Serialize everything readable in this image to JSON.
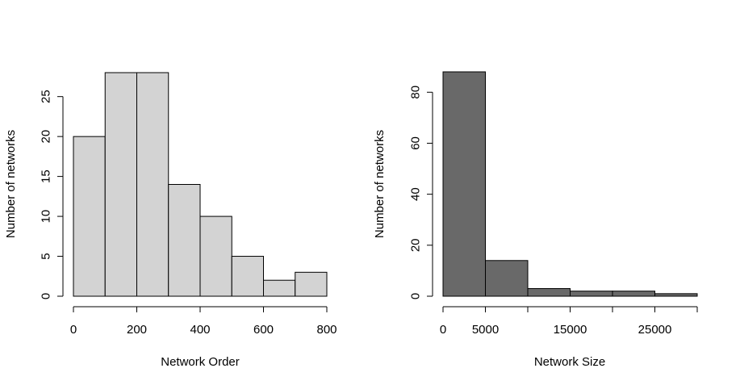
{
  "chart_data": [
    {
      "type": "bar",
      "title": "",
      "xlabel": "Network Order",
      "ylabel": "Number of networks",
      "bin_edges": [
        0,
        100,
        200,
        300,
        400,
        500,
        600,
        700,
        800
      ],
      "values": [
        20,
        28,
        28,
        14,
        10,
        5,
        2,
        3
      ],
      "xlim": [
        0,
        800
      ],
      "ylim": [
        0,
        28
      ],
      "xticks": [
        0,
        200,
        400,
        600,
        800
      ],
      "xtick_labels": [
        "0",
        "200",
        "400",
        "600",
        "800"
      ],
      "yticks": [
        0,
        5,
        10,
        15,
        20,
        25
      ],
      "ytick_labels": [
        "0",
        "5",
        "10",
        "15",
        "20",
        "25"
      ],
      "bar_color": "#d3d3d3",
      "grid": false,
      "legend": "none"
    },
    {
      "type": "bar",
      "title": "",
      "xlabel": "Network Size",
      "ylabel": "Number of networks",
      "bin_edges": [
        0,
        5000,
        10000,
        15000,
        20000,
        25000,
        30000
      ],
      "values": [
        88,
        14,
        3,
        2,
        2,
        1
      ],
      "xlim": [
        0,
        30000
      ],
      "ylim": [
        0,
        88
      ],
      "xticks": [
        0,
        5000,
        10000,
        15000,
        20000,
        25000,
        30000
      ],
      "xtick_labels": [
        "0",
        "5000",
        "",
        "15000",
        "",
        "25000",
        ""
      ],
      "yticks": [
        0,
        20,
        40,
        60,
        80
      ],
      "ytick_labels": [
        "0",
        "20",
        "40",
        "60",
        "80"
      ],
      "bar_color": "#696969",
      "grid": false,
      "legend": "none"
    }
  ]
}
